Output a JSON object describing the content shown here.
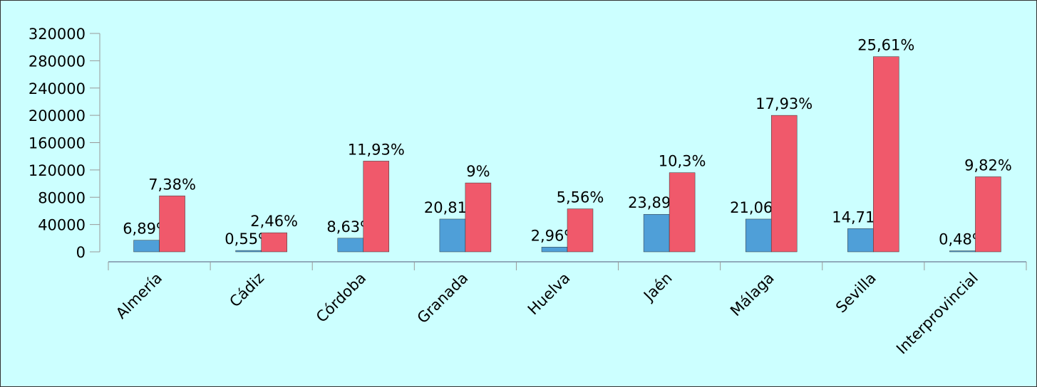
{
  "chart_data": {
    "type": "bar",
    "categories": [
      "Almería",
      "Cádiz",
      "Córdoba",
      "Granada",
      "Huelva",
      "Jaén",
      "Málaga",
      "Sevilla",
      "Interprovincial"
    ],
    "series": [
      {
        "color": "#4f9fd8",
        "values": [
          17000,
          2000,
          20000,
          48000,
          7000,
          55000,
          48000,
          34000,
          1500
        ],
        "labels": [
          "6,89%",
          "0,55%",
          "8,63%",
          "20,81%",
          "2,96%",
          "23,89%",
          "21,06%",
          "14,71%",
          "0,48%"
        ]
      },
      {
        "color": "#f0596b",
        "values": [
          82000,
          28000,
          133000,
          101000,
          63000,
          116000,
          200000,
          286000,
          110000
        ],
        "labels": [
          "7,38%",
          "2,46%",
          "11,93%",
          "9%",
          "5,56%",
          "10,3%",
          "17,93%",
          "25,61%",
          "9,82%"
        ]
      }
    ],
    "ylim": [
      0,
      320000
    ],
    "yticks": [
      0,
      40000,
      80000,
      120000,
      160000,
      200000,
      240000,
      280000,
      320000
    ],
    "background": "#ccffff"
  }
}
